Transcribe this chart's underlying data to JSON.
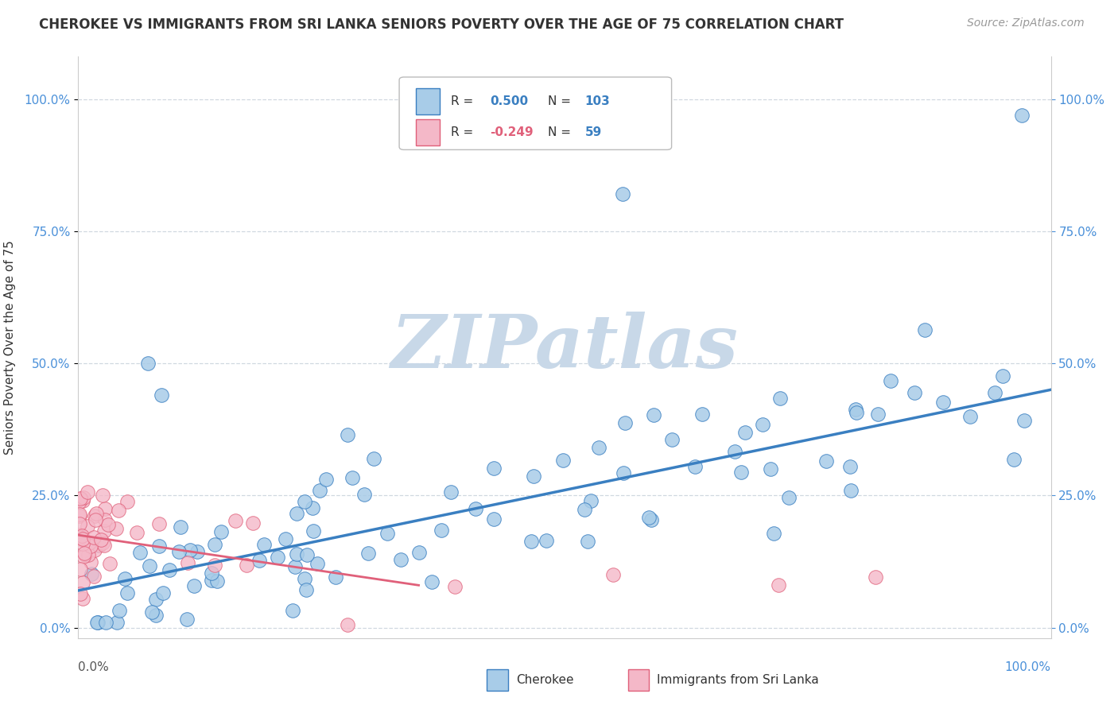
{
  "title": "CHEROKEE VS IMMIGRANTS FROM SRI LANKA SENIORS POVERTY OVER THE AGE OF 75 CORRELATION CHART",
  "source": "Source: ZipAtlas.com",
  "ylabel": "Seniors Poverty Over the Age of 75",
  "legend_cherokee": "Cherokee",
  "legend_sri_lanka": "Immigrants from Sri Lanka",
  "r_cherokee": 0.5,
  "n_cherokee": 103,
  "r_sri_lanka": -0.249,
  "n_sri_lanka": 59,
  "cherokee_color": "#a8cce8",
  "cherokee_line_color": "#3a7fc1",
  "sri_lanka_color": "#f4b8c8",
  "sri_lanka_line_color": "#e0607a",
  "background_color": "#ffffff",
  "watermark_text": "ZIPatlas",
  "watermark_color": "#c8d8e8",
  "ytick_labels": [
    "0.0%",
    "25.0%",
    "50.0%",
    "75.0%",
    "100.0%"
  ],
  "ytick_values": [
    0.0,
    0.25,
    0.5,
    0.75,
    1.0
  ],
  "xmin": 0.0,
  "xmax": 1.0,
  "ymin": -0.02,
  "ymax": 1.08,
  "cherokee_trend_x0": 0.0,
  "cherokee_trend_y0": 0.07,
  "cherokee_trend_x1": 1.0,
  "cherokee_trend_y1": 0.45,
  "sri_trend_x0": 0.0,
  "sri_trend_y0": 0.175,
  "sri_trend_x1": 0.35,
  "sri_trend_y1": 0.08,
  "grid_color": "#d0d8e0",
  "grid_style": "--",
  "spine_color": "#cccccc",
  "ylabel_color": "#333333",
  "ytick_color": "#4a90d9",
  "title_color": "#333333",
  "source_color": "#999999"
}
